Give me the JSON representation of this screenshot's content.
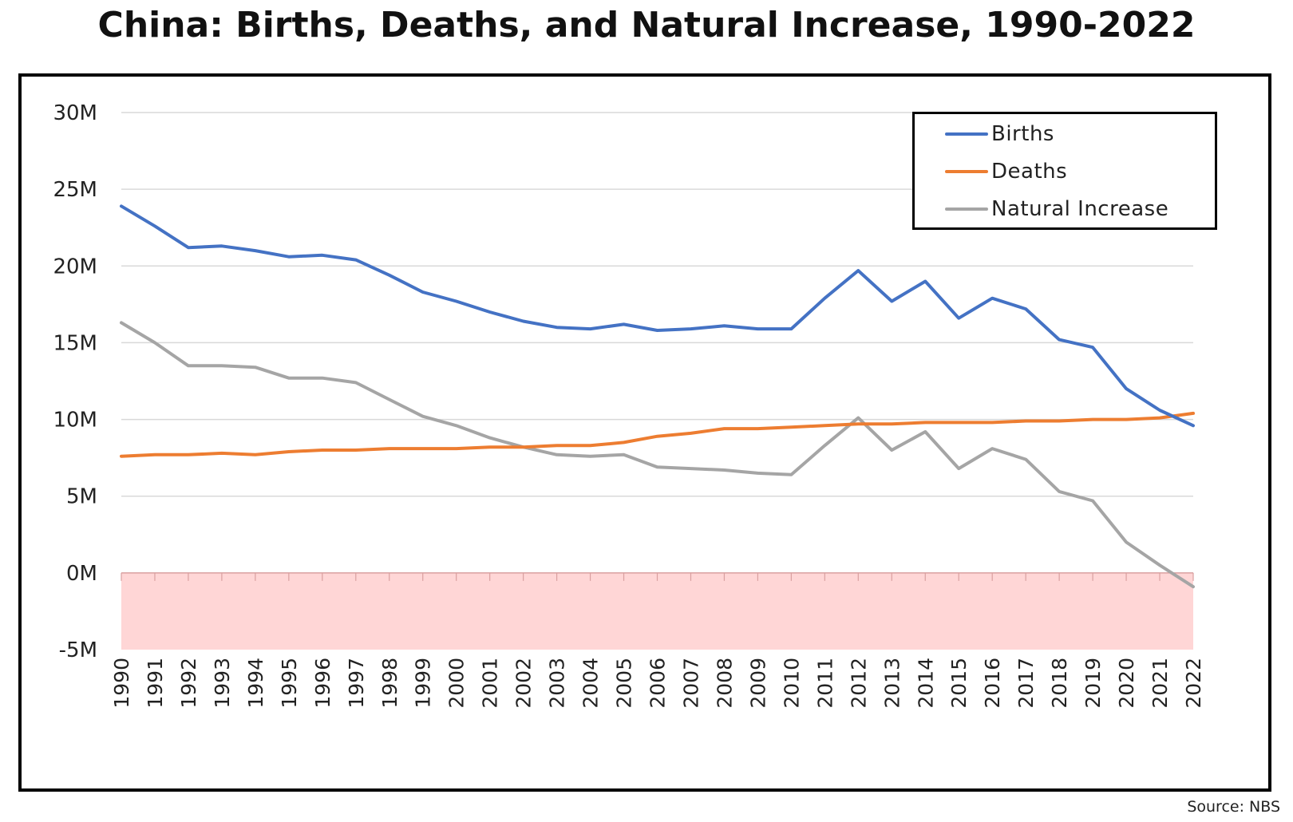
{
  "chart_data": {
    "type": "line",
    "title": "China: Births, Deaths, and Natural Increase, 1990-2022",
    "source": "Source: NBS",
    "xlabel": "",
    "ylabel": "",
    "ylim": [
      -5,
      30
    ],
    "yticks": [
      30,
      25,
      20,
      15,
      10,
      5,
      0,
      -5
    ],
    "ytick_labels": [
      "30M",
      "25M",
      "20M",
      "15M",
      "10M",
      "5M",
      "0M",
      "-5M"
    ],
    "negative_region": {
      "from": -5,
      "to": 0,
      "color": "#ffd6d6"
    },
    "legend_position": "top-right",
    "x": [
      "1990",
      "1991",
      "1992",
      "1993",
      "1994",
      "1995",
      "1996",
      "1997",
      "1998",
      "1999",
      "2000",
      "2001",
      "2002",
      "2003",
      "2004",
      "2005",
      "2006",
      "2007",
      "2008",
      "2009",
      "2010",
      "2011",
      "2012",
      "2013",
      "2014",
      "2015",
      "2016",
      "2017",
      "2018",
      "2019",
      "2020",
      "2021",
      "2022"
    ],
    "series": [
      {
        "name": "Births",
        "color": "#4472c4",
        "values": [
          23.9,
          22.6,
          21.2,
          21.3,
          21.0,
          20.6,
          20.7,
          20.4,
          19.4,
          18.3,
          17.7,
          17.0,
          16.4,
          16.0,
          15.9,
          16.2,
          15.8,
          15.9,
          16.1,
          15.9,
          15.9,
          17.9,
          19.7,
          17.7,
          19.0,
          16.6,
          17.9,
          17.2,
          15.2,
          14.7,
          12.0,
          10.6,
          9.6
        ]
      },
      {
        "name": "Deaths",
        "color": "#ed7d31",
        "values": [
          7.6,
          7.7,
          7.7,
          7.8,
          7.7,
          7.9,
          8.0,
          8.0,
          8.1,
          8.1,
          8.1,
          8.2,
          8.2,
          8.3,
          8.3,
          8.5,
          8.9,
          9.1,
          9.4,
          9.4,
          9.5,
          9.6,
          9.7,
          9.7,
          9.8,
          9.8,
          9.8,
          9.9,
          9.9,
          10.0,
          10.0,
          10.1,
          10.4
        ]
      },
      {
        "name": "Natural Increase",
        "color": "#a5a5a5",
        "values": [
          16.3,
          15.0,
          13.5,
          13.5,
          13.4,
          12.7,
          12.7,
          12.4,
          11.3,
          10.2,
          9.6,
          8.8,
          8.2,
          7.7,
          7.6,
          7.7,
          6.9,
          6.8,
          6.7,
          6.5,
          6.4,
          8.3,
          10.1,
          8.0,
          9.2,
          6.8,
          8.1,
          7.4,
          5.3,
          4.7,
          2.0,
          0.5,
          -0.9
        ]
      }
    ]
  }
}
